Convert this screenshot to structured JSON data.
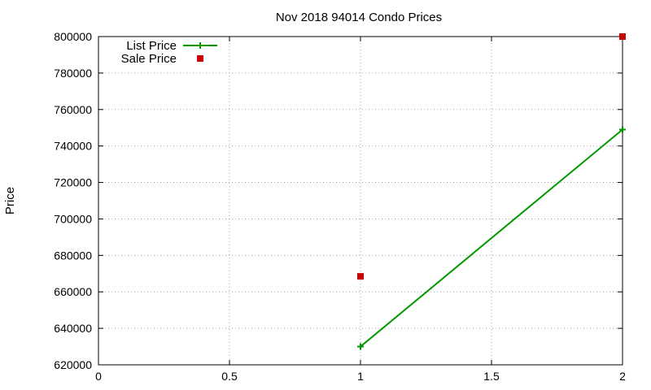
{
  "chart_data": {
    "type": "line",
    "title": "Nov 2018 94014 Condo Prices",
    "xlabel": "",
    "ylabel": "Price",
    "xlim": [
      0,
      2
    ],
    "ylim": [
      620000,
      800000
    ],
    "x_ticks": [
      0,
      0.5,
      1,
      1.5,
      2
    ],
    "x_tick_labels": [
      "0",
      "0.5",
      "1",
      "1.5",
      "2"
    ],
    "y_ticks": [
      620000,
      640000,
      660000,
      680000,
      700000,
      720000,
      740000,
      760000,
      780000,
      800000
    ],
    "y_tick_labels": [
      "620000",
      "640000",
      "660000",
      "680000",
      "700000",
      "720000",
      "740000",
      "760000",
      "780000",
      "800000"
    ],
    "grid": true,
    "legend_position": "top-left",
    "series": [
      {
        "name": "List Price",
        "style": "linespoints",
        "marker": "plus",
        "color": "#009900",
        "points": [
          [
            1,
            630000
          ],
          [
            2,
            749000
          ]
        ]
      },
      {
        "name": "Sale Price",
        "style": "points",
        "marker": "square",
        "color": "#cc0000",
        "points": [
          [
            1,
            668500
          ],
          [
            2,
            800000
          ]
        ]
      }
    ]
  }
}
